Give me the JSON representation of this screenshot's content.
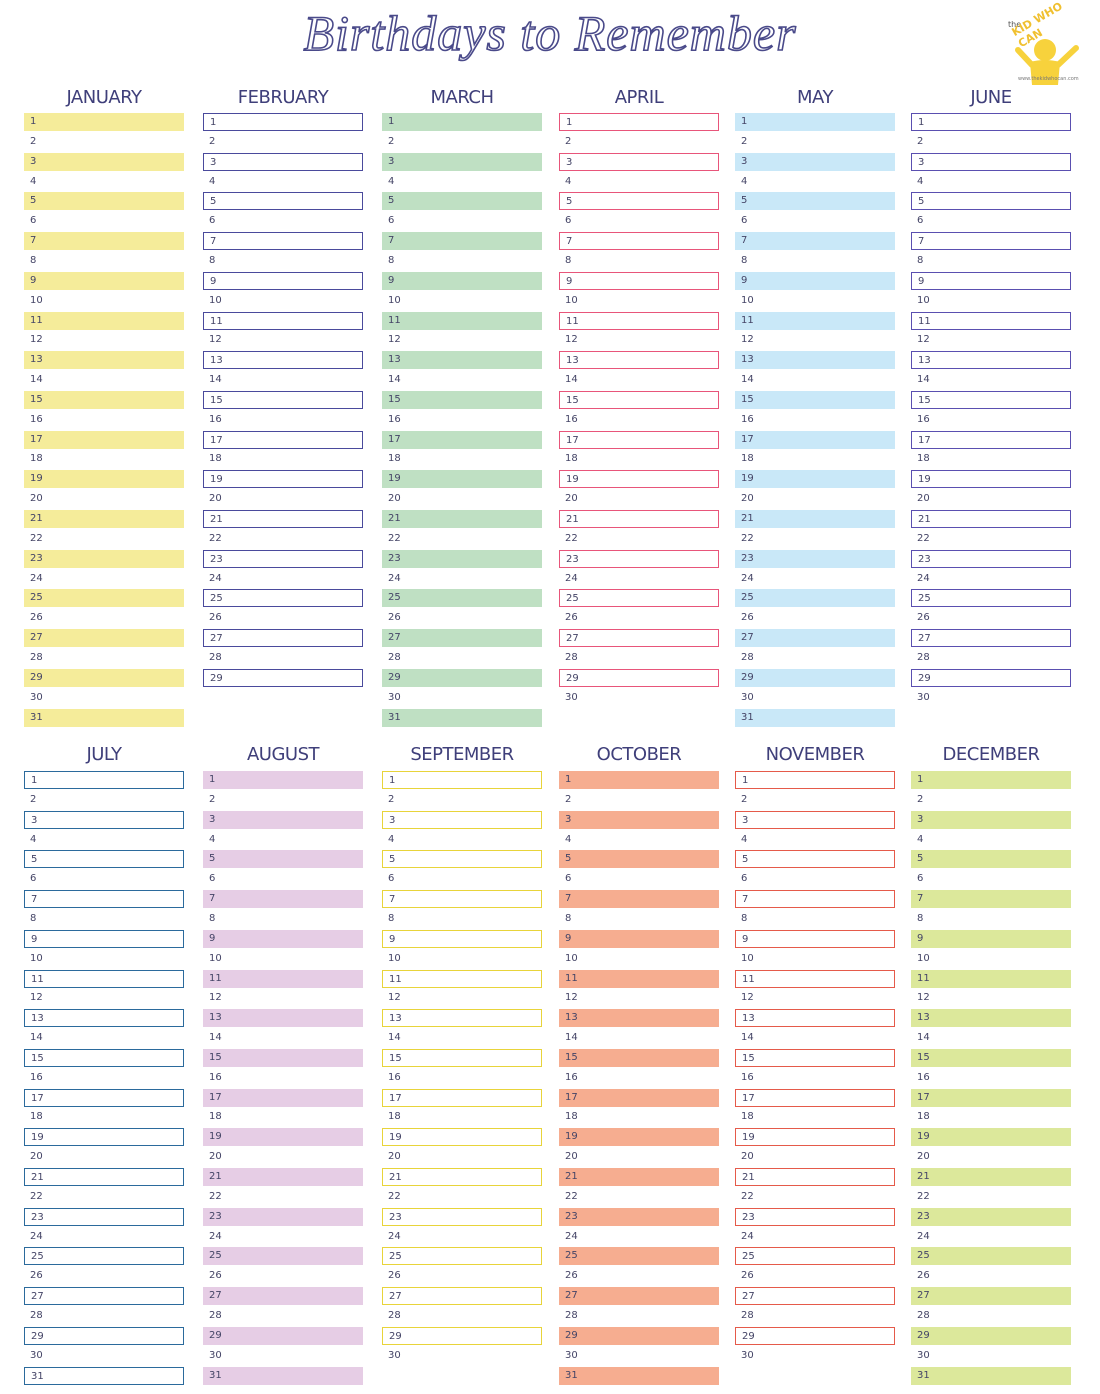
{
  "header": {
    "title": "Birthdays to Remember"
  },
  "logo": {
    "small": "the",
    "name": "KID WHO CAN",
    "url": "www.thekidwhocan.com"
  },
  "months": [
    {
      "name": "JANUARY",
      "style": "fill",
      "color": "#f5ec9a",
      "days": [
        1,
        2,
        3,
        4,
        5,
        6,
        7,
        8,
        9,
        10,
        11,
        12,
        13,
        14,
        15,
        16,
        17,
        18,
        19,
        20,
        21,
        22,
        23,
        24,
        25,
        26,
        27,
        28,
        29,
        30,
        31
      ]
    },
    {
      "name": "FEBRUARY",
      "style": "outline",
      "color": "#4a4a9c",
      "days": [
        1,
        2,
        3,
        4,
        5,
        6,
        7,
        8,
        9,
        10,
        11,
        12,
        13,
        14,
        15,
        16,
        17,
        18,
        19,
        20,
        21,
        22,
        23,
        24,
        25,
        26,
        27,
        28,
        29
      ]
    },
    {
      "name": "MARCH",
      "style": "fill",
      "color": "#bfe0c3",
      "days": [
        1,
        2,
        3,
        4,
        5,
        6,
        7,
        8,
        9,
        10,
        11,
        12,
        13,
        14,
        15,
        16,
        17,
        18,
        19,
        20,
        21,
        22,
        23,
        24,
        25,
        26,
        27,
        28,
        29,
        30,
        31
      ]
    },
    {
      "name": "APRIL",
      "style": "outline",
      "color": "#e8557a",
      "days": [
        1,
        2,
        3,
        4,
        5,
        6,
        7,
        8,
        9,
        10,
        11,
        12,
        13,
        14,
        15,
        16,
        17,
        18,
        19,
        20,
        21,
        22,
        23,
        24,
        25,
        26,
        27,
        28,
        29,
        30
      ]
    },
    {
      "name": "MAY",
      "style": "fill",
      "color": "#c9e8f8",
      "days": [
        1,
        2,
        3,
        4,
        5,
        6,
        7,
        8,
        9,
        10,
        11,
        12,
        13,
        14,
        15,
        16,
        17,
        18,
        19,
        20,
        21,
        22,
        23,
        24,
        25,
        26,
        27,
        28,
        29,
        30,
        31
      ]
    },
    {
      "name": "JUNE",
      "style": "outline",
      "color": "#5a4fb0",
      "days": [
        1,
        2,
        3,
        4,
        5,
        6,
        7,
        8,
        9,
        10,
        11,
        12,
        13,
        14,
        15,
        16,
        17,
        18,
        19,
        20,
        21,
        22,
        23,
        24,
        25,
        26,
        27,
        28,
        29,
        30
      ]
    },
    {
      "name": "JULY",
      "style": "outline",
      "color": "#2b6a9c",
      "days": [
        1,
        2,
        3,
        4,
        5,
        6,
        7,
        8,
        9,
        10,
        11,
        12,
        13,
        14,
        15,
        16,
        17,
        18,
        19,
        20,
        21,
        22,
        23,
        24,
        25,
        26,
        27,
        28,
        29,
        30,
        31
      ]
    },
    {
      "name": "AUGUST",
      "style": "fill",
      "color": "#e6cde5",
      "days": [
        1,
        2,
        3,
        4,
        5,
        6,
        7,
        8,
        9,
        10,
        11,
        12,
        13,
        14,
        15,
        16,
        17,
        18,
        19,
        20,
        21,
        22,
        23,
        24,
        25,
        26,
        27,
        28,
        29,
        30,
        31
      ]
    },
    {
      "name": "SEPTEMBER",
      "style": "outline",
      "color": "#e8d43a",
      "days": [
        1,
        2,
        3,
        4,
        5,
        6,
        7,
        8,
        9,
        10,
        11,
        12,
        13,
        14,
        15,
        16,
        17,
        18,
        19,
        20,
        21,
        22,
        23,
        24,
        25,
        26,
        27,
        28,
        29,
        30
      ]
    },
    {
      "name": "OCTOBER",
      "style": "fill",
      "color": "#f6ad90",
      "days": [
        1,
        2,
        3,
        4,
        5,
        6,
        7,
        8,
        9,
        10,
        11,
        12,
        13,
        14,
        15,
        16,
        17,
        18,
        19,
        20,
        21,
        22,
        23,
        24,
        25,
        26,
        27,
        28,
        29,
        30,
        31
      ]
    },
    {
      "name": "NOVEMBER",
      "style": "outline",
      "color": "#e55a4a",
      "days": [
        1,
        2,
        3,
        4,
        5,
        6,
        7,
        8,
        9,
        10,
        11,
        12,
        13,
        14,
        15,
        16,
        17,
        18,
        19,
        20,
        21,
        22,
        23,
        24,
        25,
        26,
        27,
        28,
        29,
        30
      ]
    },
    {
      "name": "DECEMBER",
      "style": "fill",
      "color": "#dce89b",
      "days": [
        1,
        2,
        3,
        4,
        5,
        6,
        7,
        8,
        9,
        10,
        11,
        12,
        13,
        14,
        15,
        16,
        17,
        18,
        19,
        20,
        21,
        22,
        23,
        24,
        25,
        26,
        27,
        28,
        29,
        30,
        31
      ]
    }
  ]
}
